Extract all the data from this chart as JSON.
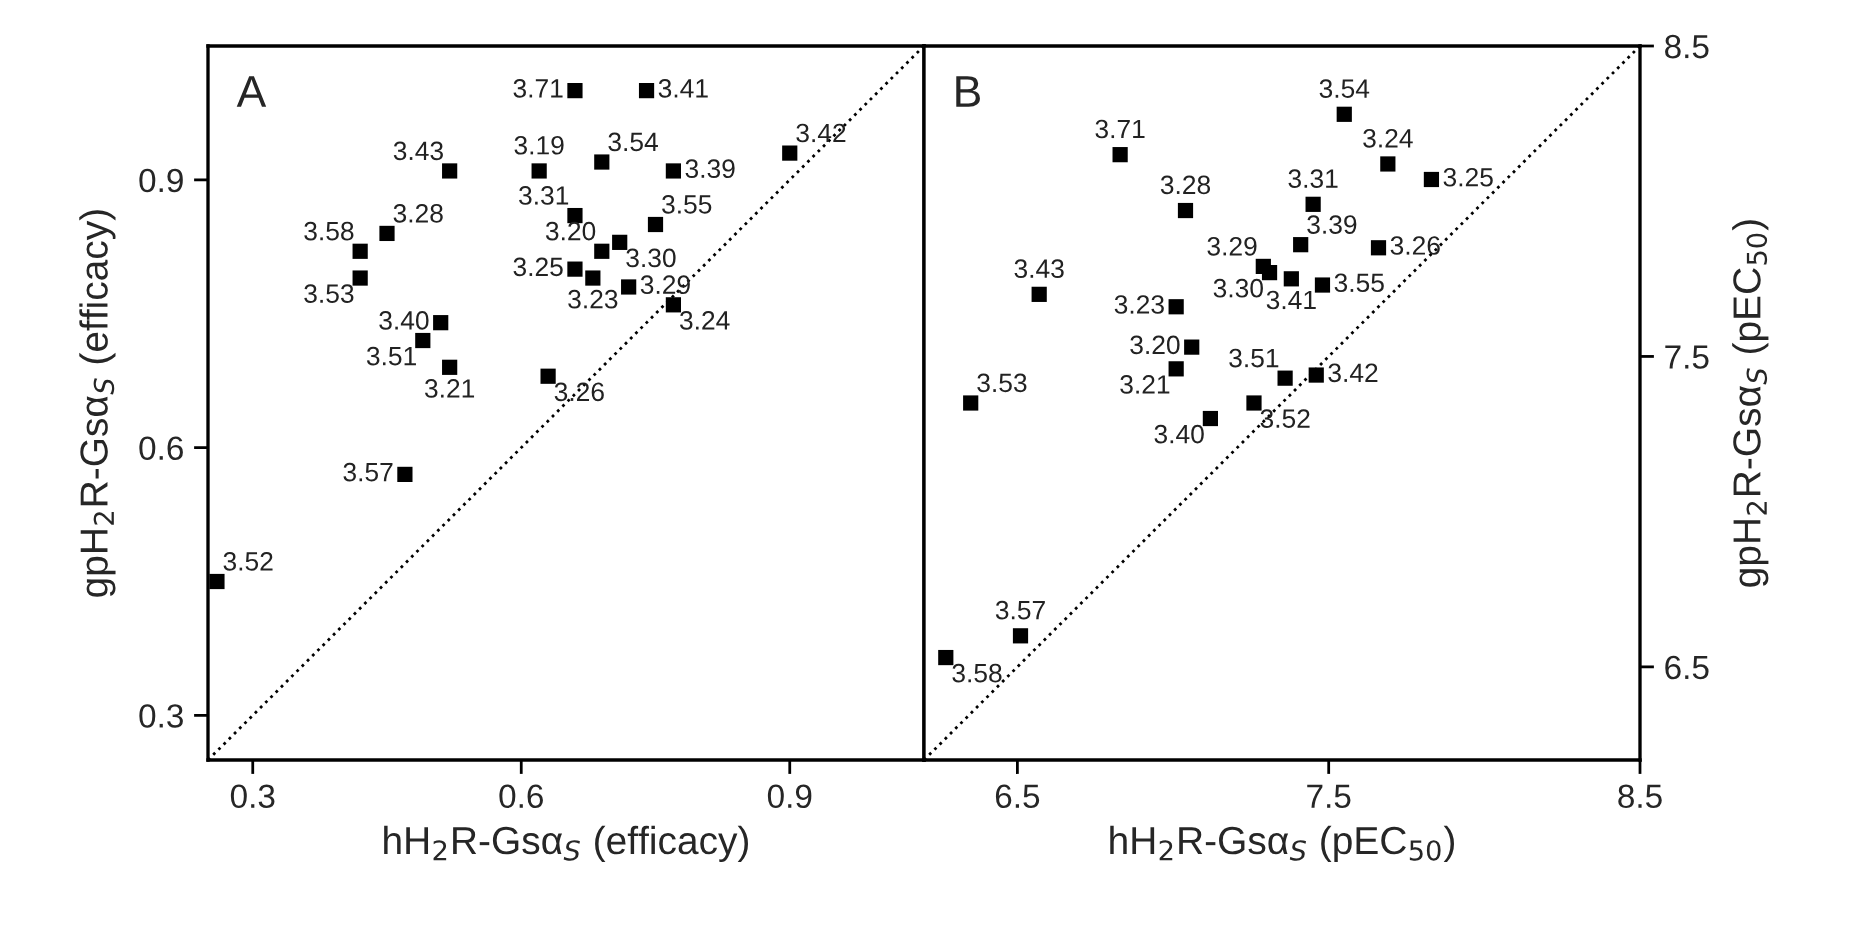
{
  "chart_data": [
    {
      "type": "scatter",
      "xlabel": "hH$_{2}$R-Gsα$_{S}$ (efficacy)",
      "ylabel": "gpH$_{2}$R-Gsα$_{S}$ (efficacy)",
      "xlim": [
        0.25,
        1.05
      ],
      "ylim": [
        0.25,
        1.05
      ],
      "xticks": [
        0.3,
        0.6,
        0.9
      ],
      "yticks": [
        0.3,
        0.6,
        0.9
      ],
      "series": [
        {
          "type": "scatter",
          "color": "#000000",
          "marker": "square",
          "x": [
            0.66,
            0.74,
            0.9,
            0.52,
            0.62,
            0.69,
            0.77,
            0.66,
            0.45,
            0.42,
            0.42,
            0.75,
            0.69,
            0.71,
            0.66,
            0.68,
            0.72,
            0.77,
            0.51,
            0.49,
            0.52,
            0.63,
            0.47,
            0.26
          ],
          "values": [
            1.0,
            1.0,
            0.93,
            0.91,
            0.91,
            0.92,
            0.91,
            0.86,
            0.84,
            0.82,
            0.79,
            0.85,
            0.82,
            0.83,
            0.8,
            0.79,
            0.78,
            0.76,
            0.74,
            0.72,
            0.69,
            0.68,
            0.57,
            0.45
          ]
        },
        {
          "type": "line",
          "color": "#000000",
          "line_style": "dotted",
          "x": [
            0.25,
            1.05
          ],
          "values": [
            0.25,
            1.05
          ]
        }
      ],
      "annotations": [
        "A",
        {
          "text": "3.71",
          "x": 0.66,
          "y": 1.0
        },
        {
          "text": "3.41",
          "x": 0.74,
          "y": 1.0
        },
        {
          "text": "3.42",
          "x": 0.9,
          "y": 0.93
        },
        {
          "text": "3.43",
          "x": 0.52,
          "y": 0.91
        },
        {
          "text": "3.19",
          "x": 0.62,
          "y": 0.91
        },
        {
          "text": "3.54",
          "x": 0.69,
          "y": 0.92
        },
        {
          "text": "3.39",
          "x": 0.77,
          "y": 0.91
        },
        {
          "text": "3.31",
          "x": 0.66,
          "y": 0.86
        },
        {
          "text": "3.28",
          "x": 0.45,
          "y": 0.84
        },
        {
          "text": "3.58",
          "x": 0.42,
          "y": 0.82
        },
        {
          "text": "3.53",
          "x": 0.42,
          "y": 0.79
        },
        {
          "text": "3.55",
          "x": 0.75,
          "y": 0.85
        },
        {
          "text": "3.20",
          "x": 0.69,
          "y": 0.82
        },
        {
          "text": "3.30",
          "x": 0.71,
          "y": 0.83
        },
        {
          "text": "3.25",
          "x": 0.66,
          "y": 0.8
        },
        {
          "text": "3.23",
          "x": 0.68,
          "y": 0.79
        },
        {
          "text": "3.29",
          "x": 0.72,
          "y": 0.78
        },
        {
          "text": "3.24",
          "x": 0.77,
          "y": 0.76
        },
        {
          "text": "3.40",
          "x": 0.51,
          "y": 0.74
        },
        {
          "text": "3.51",
          "x": 0.49,
          "y": 0.72
        },
        {
          "text": "3.21",
          "x": 0.52,
          "y": 0.69
        },
        {
          "text": "3.26",
          "x": 0.63,
          "y": 0.68
        },
        {
          "text": "3.57",
          "x": 0.47,
          "y": 0.57
        },
        {
          "text": "3.52",
          "x": 0.26,
          "y": 0.45
        }
      ]
    },
    {
      "type": "scatter",
      "xlabel": "hH$_{2}$R-Gsα$_{S}$ (pEC$_{50}$)",
      "ylabel": "gpH$_{2}$R-Gsα$_{S}$ (pEC$_{50}$)",
      "xlim": [
        6.2,
        8.5
      ],
      "ylim": [
        6.2,
        8.5
      ],
      "xticks": [
        6.5,
        7.5,
        8.5
      ],
      "yticks": [
        6.5,
        7.5,
        8.5
      ],
      "series": [
        {
          "type": "scatter",
          "color": "#000000",
          "marker": "square",
          "x": [
            7.55,
            6.83,
            7.69,
            7.83,
            7.45,
            7.04,
            7.41,
            7.66,
            7.29,
            7.31,
            7.38,
            7.48,
            6.57,
            7.01,
            7.06,
            7.01,
            7.36,
            7.46,
            6.35,
            7.12,
            7.26,
            6.51,
            6.27
          ],
          "values": [
            8.28,
            8.15,
            8.12,
            8.07,
            7.99,
            7.97,
            7.86,
            7.85,
            7.79,
            7.77,
            7.75,
            7.73,
            7.7,
            7.66,
            7.53,
            7.46,
            7.43,
            7.44,
            7.35,
            7.3,
            7.35,
            6.6,
            6.53
          ]
        },
        {
          "type": "line",
          "color": "#000000",
          "line_style": "dotted",
          "x": [
            6.2,
            8.5
          ],
          "values": [
            6.2,
            8.5
          ]
        }
      ],
      "annotations": [
        "B",
        {
          "text": "3.54",
          "x": 7.55,
          "y": 8.28
        },
        {
          "text": "3.71",
          "x": 6.83,
          "y": 8.15
        },
        {
          "text": "3.24",
          "x": 7.69,
          "y": 8.12
        },
        {
          "text": "3.25",
          "x": 7.83,
          "y": 8.07
        },
        {
          "text": "3.31",
          "x": 7.45,
          "y": 7.99
        },
        {
          "text": "3.28",
          "x": 7.04,
          "y": 7.97
        },
        {
          "text": "3.39",
          "x": 7.41,
          "y": 7.86
        },
        {
          "text": "3.26",
          "x": 7.66,
          "y": 7.85
        },
        {
          "text": "3.29",
          "x": 7.29,
          "y": 7.79
        },
        {
          "text": "3.30",
          "x": 7.31,
          "y": 7.77
        },
        {
          "text": "3.41",
          "x": 7.38,
          "y": 7.75
        },
        {
          "text": "3.55",
          "x": 7.48,
          "y": 7.73
        },
        {
          "text": "3.43",
          "x": 6.57,
          "y": 7.7
        },
        {
          "text": "3.23",
          "x": 7.01,
          "y": 7.66
        },
        {
          "text": "3.20",
          "x": 7.06,
          "y": 7.53
        },
        {
          "text": "3.21",
          "x": 7.01,
          "y": 7.46
        },
        {
          "text": "3.51",
          "x": 7.36,
          "y": 7.43
        },
        {
          "text": "3.42",
          "x": 7.46,
          "y": 7.44
        },
        {
          "text": "3.53",
          "x": 6.35,
          "y": 7.35
        },
        {
          "text": "3.40",
          "x": 7.12,
          "y": 7.3
        },
        {
          "text": "3.52",
          "x": 7.26,
          "y": 7.35
        },
        {
          "text": "3.57",
          "x": 6.51,
          "y": 6.6
        },
        {
          "text": "3.58",
          "x": 6.27,
          "y": 6.53
        }
      ]
    }
  ]
}
